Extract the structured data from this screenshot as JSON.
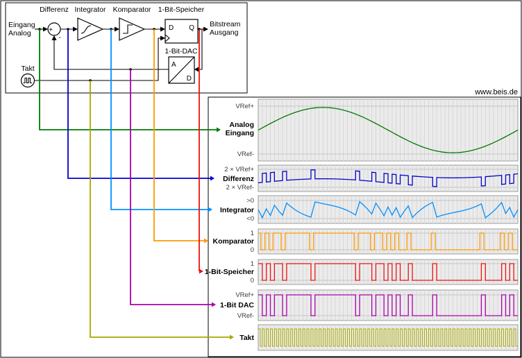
{
  "watermark": "www.beis.de",
  "diagram": {
    "labels": {
      "eingang1": "Eingang",
      "eingang2": "Analog",
      "differenz": "Differenz",
      "integrator": "Integrator",
      "komparator": "Komparator",
      "speicher": "1-Bit-Speicher",
      "dac": "1-Bit-DAC",
      "takt": "Takt",
      "bitstream1": "Bitstream",
      "bitstream2": "Ausgang",
      "ff_d": "D",
      "ff_q": "Q",
      "dac_a": "A",
      "dac_d": "D",
      "plus": "+",
      "minus": "-"
    }
  },
  "signals": [
    {
      "id": "analog",
      "name": "Analog Eingang",
      "name_lines": [
        "Analog",
        "Eingang"
      ],
      "top_label": "VRef+",
      "bottom_label": "VRef-",
      "color": "#007a00",
      "type": "sine"
    },
    {
      "id": "differenz",
      "name": "Differenz",
      "top_label": "2 × VRef+",
      "bottom_label": "2 × VRef-",
      "color": "#0000cc",
      "type": "diff"
    },
    {
      "id": "integrator",
      "name": "Integrator",
      "top_label": ">0",
      "bottom_label": "<0",
      "color": "#0090ff",
      "type": "ramp"
    },
    {
      "id": "komparator",
      "name": "Komparator",
      "top_label": "1",
      "bottom_label": "0",
      "color": "#ff9900",
      "type": "bits",
      "shift": -0.35
    },
    {
      "id": "speicher",
      "name": "1-Bit-Speicher",
      "top_label": "1",
      "bottom_label": "0",
      "color": "#ee1111",
      "type": "bits",
      "shift": 0
    },
    {
      "id": "dac",
      "name": "1-Bit DAC",
      "top_label": "VRef+",
      "bottom_label": "VRef-",
      "color": "#aa00aa",
      "type": "bits",
      "shift": 0
    },
    {
      "id": "takt",
      "name": "Takt",
      "color": "#a8a800",
      "type": "clock"
    }
  ],
  "chart_data": {
    "type": "line",
    "clocks": 64,
    "sine_amplitude": 0.9,
    "xlabel": "",
    "ylabel": "",
    "grid": true,
    "series_names": [
      "Analog Eingang",
      "Differenz",
      "Integrator",
      "Komparator",
      "1-Bit-Speicher",
      "1-Bit DAC",
      "Takt"
    ],
    "bits": [
      1,
      0,
      1,
      0,
      1,
      1,
      0,
      1,
      1,
      1,
      1,
      1,
      1,
      0,
      1,
      1,
      1,
      1,
      1,
      1,
      1,
      1,
      1,
      1,
      0,
      1,
      1,
      1,
      0,
      1,
      1,
      0,
      1,
      0,
      1,
      0,
      0,
      1,
      0,
      0,
      0,
      0,
      0,
      1,
      0,
      0,
      0,
      0,
      0,
      0,
      0,
      0,
      0,
      0,
      0,
      1,
      0,
      0,
      0,
      0,
      1,
      0,
      1,
      0
    ],
    "integrator": [
      0,
      -0.5,
      0.044,
      -0.368,
      0.263,
      -0.065,
      -0.353,
      0.397,
      0.182,
      0,
      -0.152,
      -0.278,
      -0.381,
      -0.465,
      0.466,
      0.407,
      0.355,
      0.305,
      0.253,
      0.194,
      0.125,
      0.041,
      -0.062,
      -0.188,
      -0.34,
      0.478,
      0.263,
      0.013,
      -0.275,
      0.397,
      0.028,
      -0.384,
      0.16,
      -0.34,
      0.116,
      -0.472,
      -0.103,
      0.225,
      -0.487,
      -0.237,
      -0.022,
      0.16,
      0.312,
      0.438,
      -0.459,
      -0.375,
      -0.306,
      -0.247,
      -0.195,
      -0.145,
      -0.093,
      -0.034,
      0.035,
      0.119,
      0.222,
      0.348,
      -0.5,
      -0.318,
      -0.103,
      0.147,
      0.432,
      -0.24,
      0.129,
      -0.459,
      -0.003
    ]
  }
}
